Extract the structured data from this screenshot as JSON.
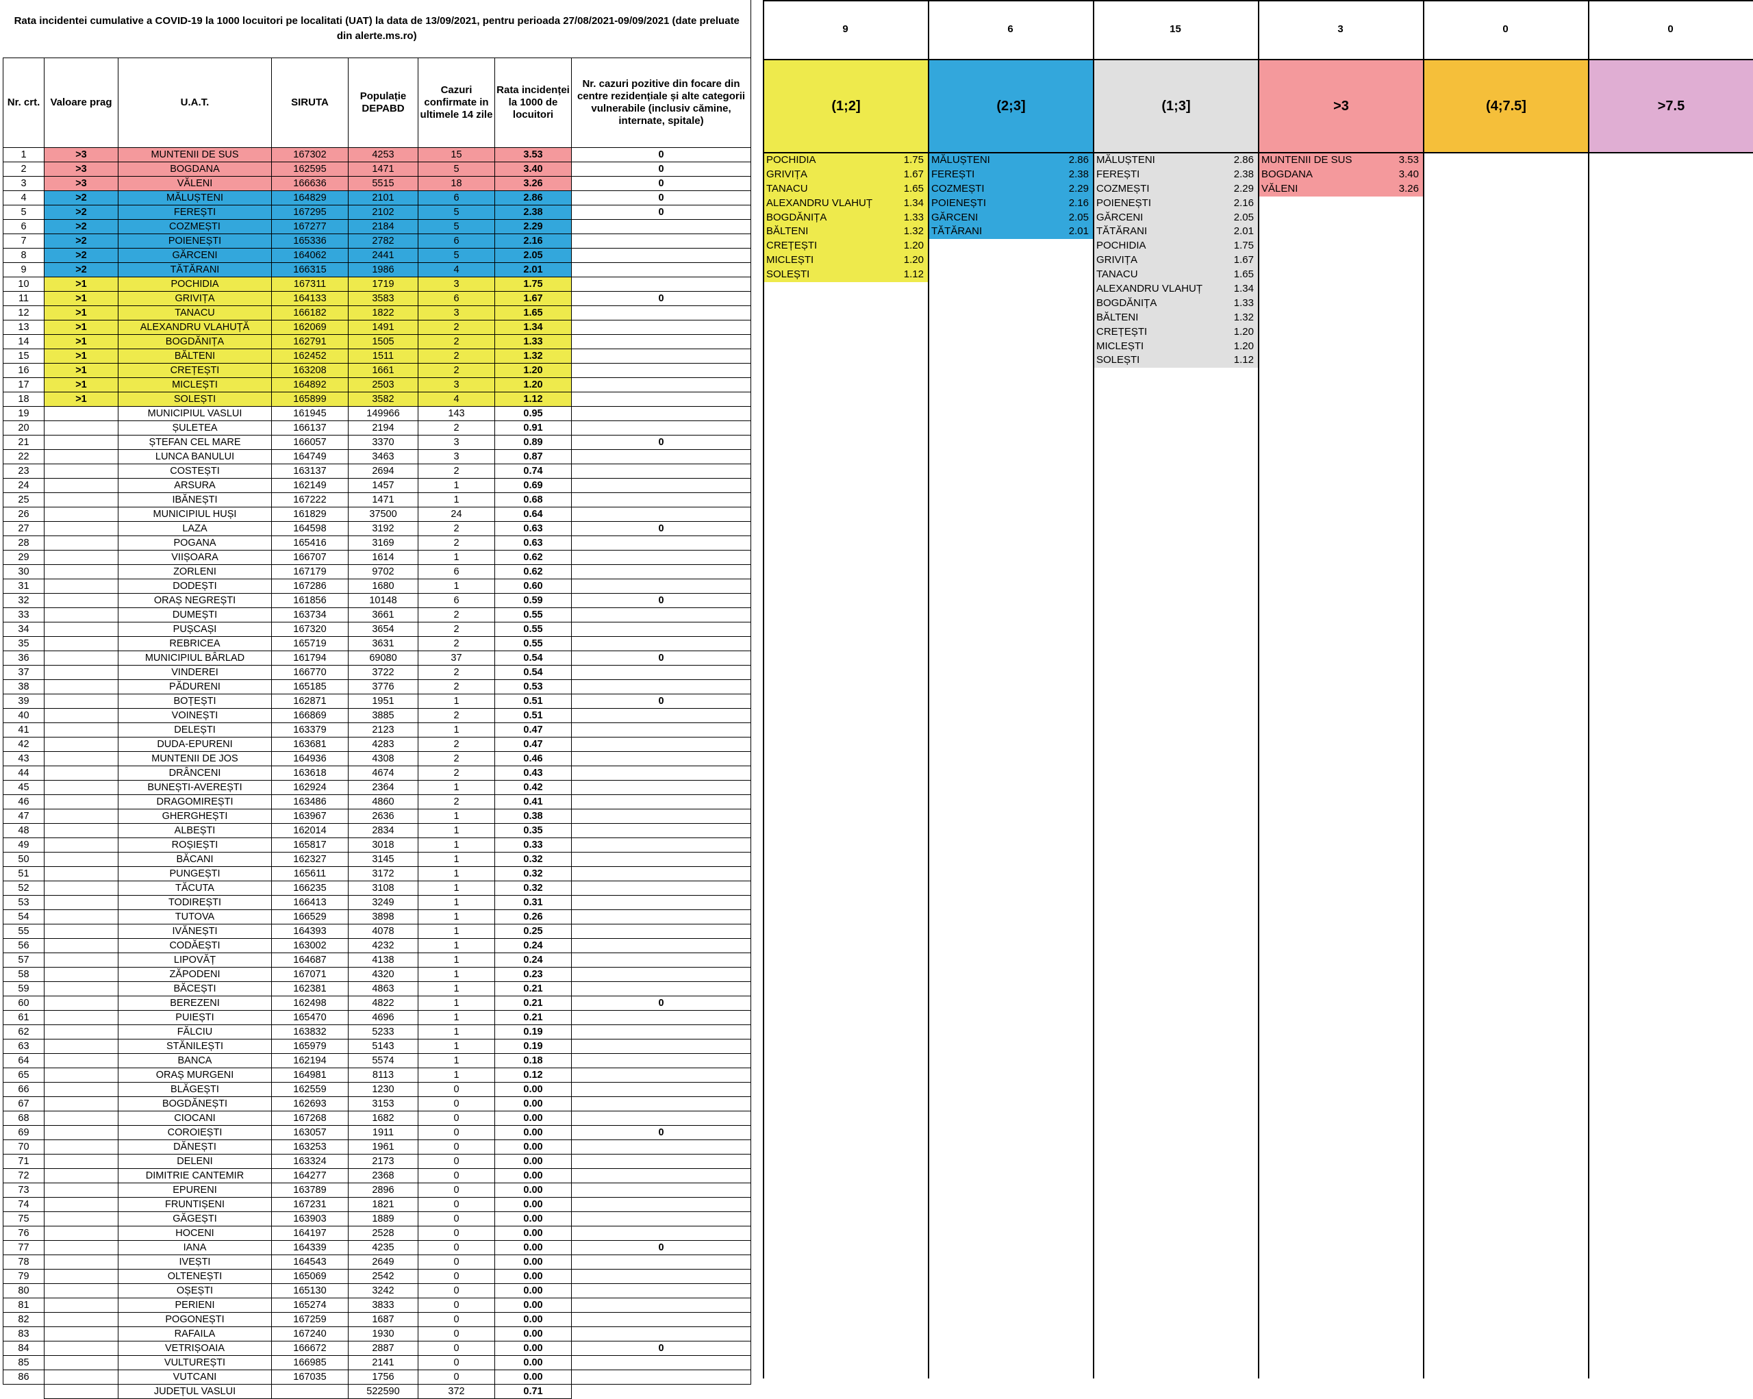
{
  "title": "Rata incidentei cumulative a COVID-19 la 1000 locuitori pe localitati (UAT) la data de 13/09/2021, pentru perioada 27/08/2021-09/09/2021 (date preluate din alerte.ms.ro)",
  "headers": {
    "nr": "Nr. crt.",
    "prag": "Valoare prag",
    "uat": "U.A.T.",
    "siruta": "SIRUTA",
    "populatie": "Populație DEPABD",
    "cazuri": "Cazuri confirmate in ultimele 14 zile",
    "rata": "Rata incidenței la 1000 de locuitori",
    "focare": "Nr. cazuri pozitive din focare din centre rezidențiale și alte categorii vulnerabile (inclusiv cămine, internate, spitale)"
  },
  "colors": {
    "gt3": "#f4999c",
    "gt2": "#33a7dc",
    "gt1": "#eeea4c",
    "gray": "#e0e0e0",
    "orange": "#f5bf3a",
    "pink": "#e0aed3"
  },
  "rows": [
    [
      "1",
      ">3",
      "MUNTENII DE SUS",
      "167302",
      "4253",
      "15",
      "3.53",
      "0"
    ],
    [
      "2",
      ">3",
      "BOGDANA",
      "162595",
      "1471",
      "5",
      "3.40",
      "0"
    ],
    [
      "3",
      ">3",
      "VĂLENI",
      "166636",
      "5515",
      "18",
      "3.26",
      "0"
    ],
    [
      "4",
      ">2",
      "MĂLUȘTENI",
      "164829",
      "2101",
      "6",
      "2.86",
      "0"
    ],
    [
      "5",
      ">2",
      "FEREȘTI",
      "167295",
      "2102",
      "5",
      "2.38",
      "0"
    ],
    [
      "6",
      ">2",
      "COZMEȘTI",
      "167277",
      "2184",
      "5",
      "2.29",
      ""
    ],
    [
      "7",
      ">2",
      "POIENEȘTI",
      "165336",
      "2782",
      "6",
      "2.16",
      ""
    ],
    [
      "8",
      ">2",
      "GĂRCENI",
      "164062",
      "2441",
      "5",
      "2.05",
      ""
    ],
    [
      "9",
      ">2",
      "TĂTĂRANI",
      "166315",
      "1986",
      "4",
      "2.01",
      ""
    ],
    [
      "10",
      ">1",
      "POCHIDIA",
      "167311",
      "1719",
      "3",
      "1.75",
      ""
    ],
    [
      "11",
      ">1",
      "GRIVIȚA",
      "164133",
      "3583",
      "6",
      "1.67",
      "0"
    ],
    [
      "12",
      ">1",
      "TANACU",
      "166182",
      "1822",
      "3",
      "1.65",
      ""
    ],
    [
      "13",
      ">1",
      "ALEXANDRU VLAHUȚĂ",
      "162069",
      "1491",
      "2",
      "1.34",
      ""
    ],
    [
      "14",
      ">1",
      "BOGDĂNIȚA",
      "162791",
      "1505",
      "2",
      "1.33",
      ""
    ],
    [
      "15",
      ">1",
      "BĂLTENI",
      "162452",
      "1511",
      "2",
      "1.32",
      ""
    ],
    [
      "16",
      ">1",
      "CREȚEȘTI",
      "163208",
      "1661",
      "2",
      "1.20",
      ""
    ],
    [
      "17",
      ">1",
      "MICLEȘTI",
      "164892",
      "2503",
      "3",
      "1.20",
      ""
    ],
    [
      "18",
      ">1",
      "SOLEȘTI",
      "165899",
      "3582",
      "4",
      "1.12",
      ""
    ],
    [
      "19",
      "",
      "MUNICIPIUL VASLUI",
      "161945",
      "149966",
      "143",
      "0.95",
      ""
    ],
    [
      "20",
      "",
      "ȘULETEA",
      "166137",
      "2194",
      "2",
      "0.91",
      ""
    ],
    [
      "21",
      "",
      "ȘTEFAN CEL MARE",
      "166057",
      "3370",
      "3",
      "0.89",
      "0"
    ],
    [
      "22",
      "",
      "LUNCA BANULUI",
      "164749",
      "3463",
      "3",
      "0.87",
      ""
    ],
    [
      "23",
      "",
      "COSTEȘTI",
      "163137",
      "2694",
      "2",
      "0.74",
      ""
    ],
    [
      "24",
      "",
      "ARSURA",
      "162149",
      "1457",
      "1",
      "0.69",
      ""
    ],
    [
      "25",
      "",
      "IBĂNEȘTI",
      "167222",
      "1471",
      "1",
      "0.68",
      ""
    ],
    [
      "26",
      "",
      "MUNICIPIUL HUȘI",
      "161829",
      "37500",
      "24",
      "0.64",
      ""
    ],
    [
      "27",
      "",
      "LAZA",
      "164598",
      "3192",
      "2",
      "0.63",
      "0"
    ],
    [
      "28",
      "",
      "POGANA",
      "165416",
      "3169",
      "2",
      "0.63",
      ""
    ],
    [
      "29",
      "",
      "VIIȘOARA",
      "166707",
      "1614",
      "1",
      "0.62",
      ""
    ],
    [
      "30",
      "",
      "ZORLENI",
      "167179",
      "9702",
      "6",
      "0.62",
      ""
    ],
    [
      "31",
      "",
      "DODEȘTI",
      "167286",
      "1680",
      "1",
      "0.60",
      ""
    ],
    [
      "32",
      "",
      "ORAȘ NEGREȘTI",
      "161856",
      "10148",
      "6",
      "0.59",
      "0"
    ],
    [
      "33",
      "",
      "DUMEȘTI",
      "163734",
      "3661",
      "2",
      "0.55",
      ""
    ],
    [
      "34",
      "",
      "PUȘCAȘI",
      "167320",
      "3654",
      "2",
      "0.55",
      ""
    ],
    [
      "35",
      "",
      "REBRICEA",
      "165719",
      "3631",
      "2",
      "0.55",
      ""
    ],
    [
      "36",
      "",
      "MUNICIPIUL BÂRLAD",
      "161794",
      "69080",
      "37",
      "0.54",
      "0"
    ],
    [
      "37",
      "",
      "VINDEREI",
      "166770",
      "3722",
      "2",
      "0.54",
      ""
    ],
    [
      "38",
      "",
      "PĂDURENI",
      "165185",
      "3776",
      "2",
      "0.53",
      ""
    ],
    [
      "39",
      "",
      "BOȚEȘTI",
      "162871",
      "1951",
      "1",
      "0.51",
      "0"
    ],
    [
      "40",
      "",
      "VOINEȘTI",
      "166869",
      "3885",
      "2",
      "0.51",
      ""
    ],
    [
      "41",
      "",
      "DELEȘTI",
      "163379",
      "2123",
      "1",
      "0.47",
      ""
    ],
    [
      "42",
      "",
      "DUDA-EPURENI",
      "163681",
      "4283",
      "2",
      "0.47",
      ""
    ],
    [
      "43",
      "",
      "MUNTENII DE JOS",
      "164936",
      "4308",
      "2",
      "0.46",
      ""
    ],
    [
      "44",
      "",
      "DRÂNCENI",
      "163618",
      "4674",
      "2",
      "0.43",
      ""
    ],
    [
      "45",
      "",
      "BUNEȘTI-AVEREȘTI",
      "162924",
      "2364",
      "1",
      "0.42",
      ""
    ],
    [
      "46",
      "",
      "DRAGOMIREȘTI",
      "163486",
      "4860",
      "2",
      "0.41",
      ""
    ],
    [
      "47",
      "",
      "GHERGHEȘTI",
      "163967",
      "2636",
      "1",
      "0.38",
      ""
    ],
    [
      "48",
      "",
      "ALBEȘTI",
      "162014",
      "2834",
      "1",
      "0.35",
      ""
    ],
    [
      "49",
      "",
      "ROȘIEȘTI",
      "165817",
      "3018",
      "1",
      "0.33",
      ""
    ],
    [
      "50",
      "",
      "BĂCANI",
      "162327",
      "3145",
      "1",
      "0.32",
      ""
    ],
    [
      "51",
      "",
      "PUNGEȘTI",
      "165611",
      "3172",
      "1",
      "0.32",
      ""
    ],
    [
      "52",
      "",
      "TĂCUTA",
      "166235",
      "3108",
      "1",
      "0.32",
      ""
    ],
    [
      "53",
      "",
      "TODIREȘTI",
      "166413",
      "3249",
      "1",
      "0.31",
      ""
    ],
    [
      "54",
      "",
      "TUTOVA",
      "166529",
      "3898",
      "1",
      "0.26",
      ""
    ],
    [
      "55",
      "",
      "IVĂNEȘTI",
      "164393",
      "4078",
      "1",
      "0.25",
      ""
    ],
    [
      "56",
      "",
      "CODĂEȘTI",
      "163002",
      "4232",
      "1",
      "0.24",
      ""
    ],
    [
      "57",
      "",
      "LIPOVĂȚ",
      "164687",
      "4138",
      "1",
      "0.24",
      ""
    ],
    [
      "58",
      "",
      "ZĂPODENI",
      "167071",
      "4320",
      "1",
      "0.23",
      ""
    ],
    [
      "59",
      "",
      "BĂCEȘTI",
      "162381",
      "4863",
      "1",
      "0.21",
      ""
    ],
    [
      "60",
      "",
      "BEREZENI",
      "162498",
      "4822",
      "1",
      "0.21",
      "0"
    ],
    [
      "61",
      "",
      "PUIEȘTI",
      "165470",
      "4696",
      "1",
      "0.21",
      ""
    ],
    [
      "62",
      "",
      "FĂLCIU",
      "163832",
      "5233",
      "1",
      "0.19",
      ""
    ],
    [
      "63",
      "",
      "STĂNILEȘTI",
      "165979",
      "5143",
      "1",
      "0.19",
      ""
    ],
    [
      "64",
      "",
      "BANCA",
      "162194",
      "5574",
      "1",
      "0.18",
      ""
    ],
    [
      "65",
      "",
      "ORAȘ MURGENI",
      "164981",
      "8113",
      "1",
      "0.12",
      ""
    ],
    [
      "66",
      "",
      "BLĂGEȘTI",
      "162559",
      "1230",
      "0",
      "0.00",
      ""
    ],
    [
      "67",
      "",
      "BOGDĂNEȘTI",
      "162693",
      "3153",
      "0",
      "0.00",
      ""
    ],
    [
      "68",
      "",
      "CIOCANI",
      "167268",
      "1682",
      "0",
      "0.00",
      ""
    ],
    [
      "69",
      "",
      "COROIEȘTI",
      "163057",
      "1911",
      "0",
      "0.00",
      "0"
    ],
    [
      "70",
      "",
      "DĂNEȘTI",
      "163253",
      "1961",
      "0",
      "0.00",
      ""
    ],
    [
      "71",
      "",
      "DELENI",
      "163324",
      "2173",
      "0",
      "0.00",
      ""
    ],
    [
      "72",
      "",
      "DIMITRIE CANTEMIR",
      "164277",
      "2368",
      "0",
      "0.00",
      ""
    ],
    [
      "73",
      "",
      "EPURENI",
      "163789",
      "2896",
      "0",
      "0.00",
      ""
    ],
    [
      "74",
      "",
      "FRUNTIȘENI",
      "167231",
      "1821",
      "0",
      "0.00",
      ""
    ],
    [
      "75",
      "",
      "GĂGEȘTI",
      "163903",
      "1889",
      "0",
      "0.00",
      ""
    ],
    [
      "76",
      "",
      "HOCENI",
      "164197",
      "2528",
      "0",
      "0.00",
      ""
    ],
    [
      "77",
      "",
      "IANA",
      "164339",
      "4235",
      "0",
      "0.00",
      "0"
    ],
    [
      "78",
      "",
      "IVEȘTI",
      "164543",
      "2649",
      "0",
      "0.00",
      ""
    ],
    [
      "79",
      "",
      "OLTENEȘTI",
      "165069",
      "2542",
      "0",
      "0.00",
      ""
    ],
    [
      "80",
      "",
      "OȘEȘTI",
      "165130",
      "3242",
      "0",
      "0.00",
      ""
    ],
    [
      "81",
      "",
      "PERIENI",
      "165274",
      "3833",
      "0",
      "0.00",
      ""
    ],
    [
      "82",
      "",
      "POGONEȘTI",
      "167259",
      "1687",
      "0",
      "0.00",
      ""
    ],
    [
      "83",
      "",
      "RAFAILA",
      "167240",
      "1930",
      "0",
      "0.00",
      ""
    ],
    [
      "84",
      "",
      "VETRIȘOAIA",
      "166672",
      "2887",
      "0",
      "0.00",
      "0"
    ],
    [
      "85",
      "",
      "VULTUREȘTI",
      "166985",
      "2141",
      "0",
      "0.00",
      ""
    ],
    [
      "86",
      "",
      "VUTCANI",
      "167035",
      "1756",
      "0",
      "0.00",
      ""
    ]
  ],
  "total": {
    "label": "JUDEȚUL VASLUI",
    "populatie": "522590",
    "cazuri": "372",
    "rata": "0.71"
  },
  "panels": [
    {
      "count": "9",
      "label": "(1;2]",
      "color": "#eeea4c",
      "items": [
        [
          "POCHIDIA",
          "1.75"
        ],
        [
          "GRIVIȚA",
          "1.67"
        ],
        [
          "TANACU",
          "1.65"
        ],
        [
          "ALEXANDRU VLAHUȚ",
          "1.34"
        ],
        [
          "BOGDĂNIȚA",
          "1.33"
        ],
        [
          "BĂLTENI",
          "1.32"
        ],
        [
          "CREȚEȘTI",
          "1.20"
        ],
        [
          "MICLEȘTI",
          "1.20"
        ],
        [
          "SOLEȘTI",
          "1.12"
        ]
      ]
    },
    {
      "count": "6",
      "label": "(2;3]",
      "color": "#33a7dc",
      "items": [
        [
          "MĂLUȘTENI",
          "2.86"
        ],
        [
          "FEREȘTI",
          "2.38"
        ],
        [
          "COZMEȘTI",
          "2.29"
        ],
        [
          "POIENEȘTI",
          "2.16"
        ],
        [
          "GĂRCENI",
          "2.05"
        ],
        [
          "TĂTĂRANI",
          "2.01"
        ]
      ]
    },
    {
      "count": "15",
      "label": "(1;3]",
      "color": "#e0e0e0",
      "items": [
        [
          "MĂLUȘTENI",
          "2.86"
        ],
        [
          "FEREȘTI",
          "2.38"
        ],
        [
          "COZMEȘTI",
          "2.29"
        ],
        [
          "POIENEȘTI",
          "2.16"
        ],
        [
          "GĂRCENI",
          "2.05"
        ],
        [
          "TĂTĂRANI",
          "2.01"
        ],
        [
          "POCHIDIA",
          "1.75"
        ],
        [
          "GRIVIȚA",
          "1.67"
        ],
        [
          "TANACU",
          "1.65"
        ],
        [
          "ALEXANDRU VLAHUȚ",
          "1.34"
        ],
        [
          "BOGDĂNIȚA",
          "1.33"
        ],
        [
          "BĂLTENI",
          "1.32"
        ],
        [
          "CREȚEȘTI",
          "1.20"
        ],
        [
          "MICLEȘTI",
          "1.20"
        ],
        [
          "SOLEȘTI",
          "1.12"
        ]
      ]
    },
    {
      "count": "3",
      "label": ">3",
      "color": "#f4999c",
      "items": [
        [
          "MUNTENII DE SUS",
          "3.53"
        ],
        [
          "BOGDANA",
          "3.40"
        ],
        [
          "VĂLENI",
          "3.26"
        ]
      ]
    },
    {
      "count": "0",
      "label": "(4;7.5]",
      "color": "#f5bf3a",
      "items": []
    },
    {
      "count": "0",
      "label": ">7.5",
      "color": "#e0aed3",
      "items": []
    }
  ]
}
